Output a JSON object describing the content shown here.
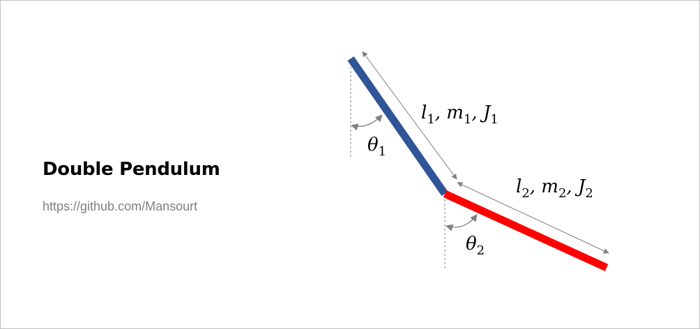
{
  "title": "Double Pendulum",
  "link": "https://github.com/Mansourt",
  "colors": {
    "link1": "#2f5597",
    "link2": "#ff0000",
    "annotation": "#808080",
    "border": "#bfbfbf"
  },
  "labels": {
    "link1_symbol": "l",
    "link1_sub": "1",
    "link1_comma_m": ", m",
    "link1_m_sub": "1",
    "link1_comma_J": ", J",
    "link1_J_sub": "1",
    "link2_symbol": "l",
    "link2_sub": "2",
    "link2_comma_m": ", m",
    "link2_m_sub": "2",
    "link2_comma_J": ", J",
    "link2_J_sub": "2",
    "theta1_symbol": "θ",
    "theta1_sub": "1",
    "theta2_symbol": "θ",
    "theta2_sub": "2"
  }
}
